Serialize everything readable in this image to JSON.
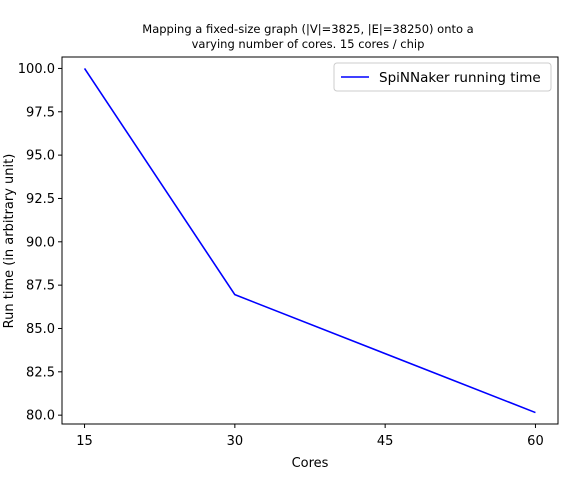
{
  "chart_data": {
    "type": "line",
    "title": [
      "Mapping a fixed-size graph (|V|=3825, |E|=38250) onto a",
      "varying number of cores. 15 cores / chip"
    ],
    "xlabel": "Cores",
    "ylabel": "Run time (in arbitrary unit)",
    "x": [
      15,
      30,
      60
    ],
    "series": [
      {
        "name": "SpiNNaker running time",
        "values": [
          100.0,
          86.95,
          80.15
        ],
        "color": "#0000ff"
      }
    ],
    "xticks": [
      15,
      30,
      45,
      60
    ],
    "xtick_labels": [
      "15",
      "30",
      "45",
      "60"
    ],
    "yticks": [
      80.0,
      82.5,
      85.0,
      87.5,
      90.0,
      92.5,
      95.0,
      97.5,
      100.0
    ],
    "ytick_labels": [
      "80.0",
      "82.5",
      "85.0",
      "87.5",
      "90.0",
      "92.5",
      "95.0",
      "97.5",
      "100.0"
    ],
    "xlim": [
      12.75,
      62.25
    ],
    "ylim": [
      79.49,
      100.66
    ],
    "grid": false,
    "legend_position": "top-right"
  }
}
